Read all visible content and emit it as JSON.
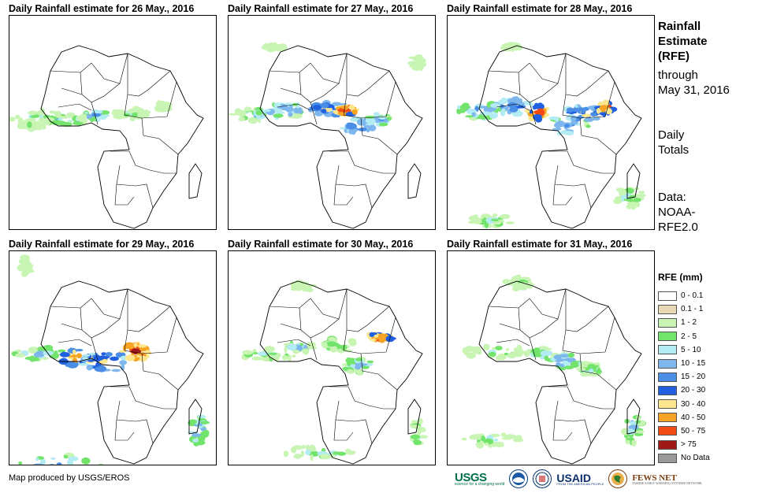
{
  "panels": [
    {
      "title": "Daily Rainfall estimate for 26 May., 2016"
    },
    {
      "title": "Daily Rainfall estimate for 27 May., 2016"
    },
    {
      "title": "Daily Rainfall estimate for 28 May., 2016"
    },
    {
      "title": "Daily Rainfall estimate for 29 May., 2016"
    },
    {
      "title": "Daily Rainfall estimate for 30 May., 2016"
    },
    {
      "title": "Daily Rainfall estimate for 31 May., 2016"
    }
  ],
  "side": {
    "title_lines": [
      "Rainfall",
      "Estimate",
      "(RFE)"
    ],
    "through_lines": [
      "through",
      "May 31, 2016"
    ],
    "totals_lines": [
      "Daily",
      "Totals"
    ],
    "data_lines": [
      "Data:",
      "NOAA-",
      "RFE2.0"
    ]
  },
  "legend": {
    "title": "RFE (mm)",
    "items": [
      {
        "label": "0 - 0.1",
        "color": "#ffffff"
      },
      {
        "label": "0.1 - 1",
        "color": "#e9d8b5"
      },
      {
        "label": "1 - 2",
        "color": "#c8f4b4"
      },
      {
        "label": "2 - 5",
        "color": "#72e46b"
      },
      {
        "label": "5 - 10",
        "color": "#b3ecf2"
      },
      {
        "label": "10 - 15",
        "color": "#7db7ee"
      },
      {
        "label": "15 - 20",
        "color": "#4b8ee6"
      },
      {
        "label": "20 - 30",
        "color": "#1f5fe0"
      },
      {
        "label": "30 - 40",
        "color": "#fde68e"
      },
      {
        "label": "40 - 50",
        "color": "#f7a323"
      },
      {
        "label": "50 - 75",
        "color": "#f24a14"
      },
      {
        "label": "> 75",
        "color": "#a01919"
      },
      {
        "label": "No Data",
        "color": "#999999"
      }
    ]
  },
  "footer": {
    "credit": "Map produced by USGS/EROS"
  },
  "logos": {
    "usgs": "USGS",
    "usgs_tagline": "science for a changing world",
    "noaa": "NOAA",
    "usaid": "USAID",
    "usaid_tagline": "FROM THE AMERICAN PEOPLE",
    "fews": "FEWS NET",
    "fews_tagline": "FAMINE EARLY WARNING SYSTEMS NETWORK"
  }
}
